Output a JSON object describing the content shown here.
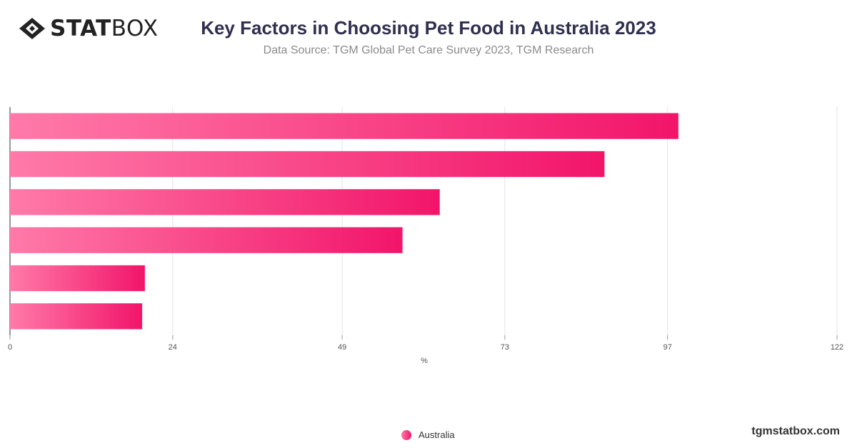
{
  "header": {
    "logo_bold": "STAT",
    "logo_light": "BOX",
    "title": "Key Factors in Choosing Pet Food in Australia 2023",
    "subtitle": "Data Source: TGM Global Pet Care Survey 2023, TGM Research"
  },
  "footer": {
    "brand": "tgmstatbox.com"
  },
  "colors": {
    "bar_start": "#ff7aa8",
    "bar_end": "#f2156a",
    "grid": "#e3e3e3",
    "axis": "#333333"
  },
  "chart_data": {
    "type": "bar",
    "orientation": "horizontal",
    "categories": [
      "",
      "",
      "",
      "",
      "",
      ""
    ],
    "series": [
      {
        "name": "Australia",
        "values": [
          98.6,
          87.7,
          63.4,
          57.9,
          19.9,
          19.5
        ]
      }
    ],
    "xlabel": "%",
    "xlim": [
      0,
      122
    ],
    "xticks": [
      "0",
      "24",
      "49",
      "73",
      "97",
      "122"
    ],
    "grid": true,
    "legend": "bottom-center"
  }
}
